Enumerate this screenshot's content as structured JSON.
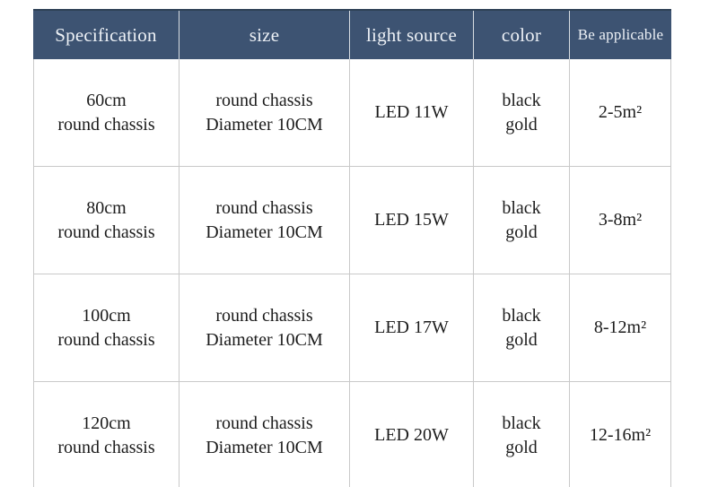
{
  "colors": {
    "header_background": "#3d5372",
    "header_text": "#edf1f6",
    "body_text": "#1c1c1c",
    "grid_line": "#c9c9c9"
  },
  "table": {
    "columns": [
      {
        "key": "specification",
        "label": "Specification"
      },
      {
        "key": "size",
        "label": "size"
      },
      {
        "key": "light_source",
        "label": "light source"
      },
      {
        "key": "color",
        "label": "color"
      },
      {
        "key": "applicable",
        "label": "Be applicable"
      }
    ],
    "rows": [
      {
        "specification": "60cm\nround chassis",
        "size": "round chassis\nDiameter 10CM",
        "light_source": "LED 11W",
        "color": "black\ngold",
        "applicable": "2-5m²"
      },
      {
        "specification": "80cm\nround chassis",
        "size": "round chassis\nDiameter 10CM",
        "light_source": "LED 15W",
        "color": "black\ngold",
        "applicable": "3-8m²"
      },
      {
        "specification": "100cm\nround chassis",
        "size": "round chassis\nDiameter 10CM",
        "light_source": "LED 17W",
        "color": "black\ngold",
        "applicable": "8-12m²"
      },
      {
        "specification": "120cm\nround chassis",
        "size": "round chassis\nDiameter 10CM",
        "light_source": "LED 20W",
        "color": "black\ngold",
        "applicable": "12-16m²"
      }
    ]
  }
}
